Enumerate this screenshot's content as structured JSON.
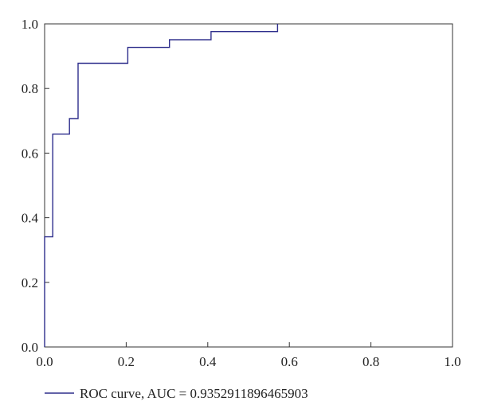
{
  "chart_data": {
    "type": "line",
    "title": "",
    "xlabel": "",
    "ylabel": "",
    "xlim": [
      0.0,
      1.0
    ],
    "ylim": [
      0.0,
      1.0
    ],
    "x_ticks": [
      "0.0",
      "0.2",
      "0.4",
      "0.6",
      "0.8",
      "1.0"
    ],
    "y_ticks": [
      "0.0",
      "0.2",
      "0.4",
      "0.6",
      "0.8",
      "1.0"
    ],
    "grid": false,
    "legend_position": "bottom-left",
    "series": [
      {
        "name": "ROC curve, AUC = 0.9352911896465903",
        "color": "#2e2e8c",
        "x": [
          0.0,
          0.0,
          0.02,
          0.02,
          0.061,
          0.061,
          0.082,
          0.082,
          0.204,
          0.204,
          0.306,
          0.306,
          0.408,
          0.408,
          0.571,
          0.571
        ],
        "y": [
          0.0,
          0.341,
          0.341,
          0.659,
          0.659,
          0.707,
          0.707,
          0.878,
          0.878,
          0.927,
          0.927,
          0.951,
          0.951,
          0.976,
          0.976,
          1.0
        ]
      }
    ]
  }
}
